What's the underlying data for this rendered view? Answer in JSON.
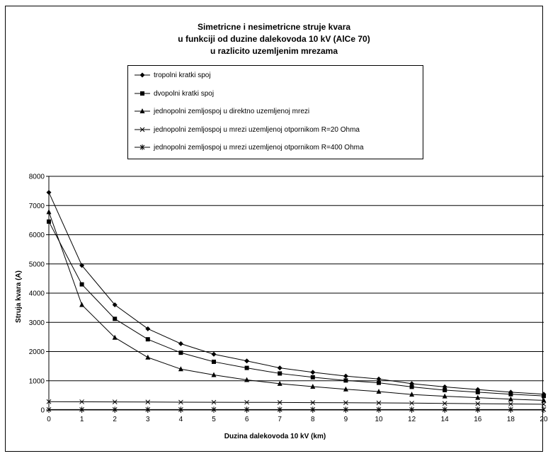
{
  "chart_data": {
    "type": "line",
    "title_lines": [
      "Simetricne i nesimetricne struje kvara",
      "u funkciji od duzine dalekovoda 10 kV (AlCe 70)",
      "u razlicito uzemljenim mrezama"
    ],
    "xlabel": "Duzina dalekovoda 10 kV (km)",
    "ylabel": "Struja kvara (A)",
    "ylim": [
      0,
      8000
    ],
    "yticks": [
      "0",
      "1000",
      "2000",
      "3000",
      "4000",
      "5000",
      "6000",
      "7000",
      "8000"
    ],
    "categories": [
      "0",
      "1",
      "2",
      "3",
      "4",
      "5",
      "6",
      "7",
      "8",
      "9",
      "10",
      "12",
      "14",
      "16",
      "18",
      "20"
    ],
    "grid": "horizontal",
    "legend_position": "top",
    "series": [
      {
        "name": "tropolni kratki spoj",
        "marker": "diamond",
        "values": [
          7450,
          4950,
          3600,
          2780,
          2270,
          1910,
          1680,
          1440,
          1290,
          1160,
          1060,
          900,
          790,
          700,
          610,
          540
        ]
      },
      {
        "name": "dvopolni kratki spoj",
        "marker": "square",
        "values": [
          6450,
          4300,
          3120,
          2420,
          1960,
          1650,
          1440,
          1250,
          1120,
          1010,
          930,
          790,
          680,
          610,
          540,
          480
        ]
      },
      {
        "name": "jednopolni zemljospoj u direktno uzemljenoj mrezi",
        "marker": "triangle",
        "values": [
          6780,
          3600,
          2480,
          1800,
          1400,
          1200,
          1030,
          900,
          800,
          710,
          630,
          530,
          470,
          420,
          370,
          330
        ]
      },
      {
        "name": "jednopolni zemljospoj u mrezi uzemljenoj otpornikom R=20 Ohma",
        "marker": "x",
        "values": [
          285,
          280,
          275,
          272,
          268,
          265,
          262,
          258,
          252,
          248,
          243,
          235,
          225,
          215,
          205,
          195
        ]
      },
      {
        "name": "jednopolni zemljospoj u mrezi uzemljenoj otpornikom R=400 Ohma",
        "marker": "star",
        "values": [
          15,
          15,
          15,
          15,
          15,
          15,
          15,
          15,
          15,
          15,
          15,
          15,
          15,
          15,
          15,
          15
        ]
      }
    ]
  }
}
